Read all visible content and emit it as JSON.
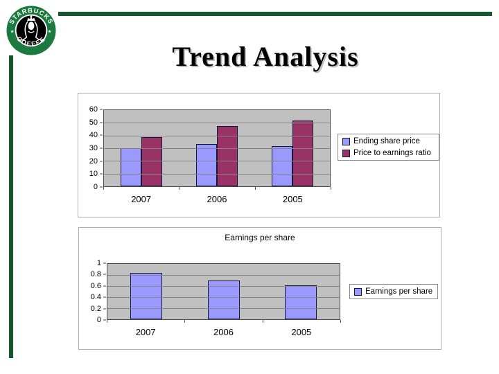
{
  "slide": {
    "title": "Trend Analysis",
    "accent_line_color": "#14582f",
    "logo": {
      "top_text": "STARBUCKS",
      "bottom_text": "COFFEE",
      "star_glyph": "★",
      "ring_color": "#1b7a3e",
      "center_color": "#000000",
      "text_color": "#ffffff"
    }
  },
  "chart_data": [
    {
      "type": "bar",
      "title": "",
      "categories": [
        "2007",
        "2006",
        "2005"
      ],
      "series": [
        {
          "name": "Ending share price",
          "color": "#9999ff",
          "values": [
            30,
            33.5,
            31.5
          ]
        },
        {
          "name": "Price to earnings ratio",
          "color": "#993366",
          "values": [
            38.5,
            47.5,
            52
          ]
        }
      ],
      "y_ticks": [
        "60",
        "50",
        "40",
        "30",
        "20",
        "10",
        "0"
      ],
      "ylim": [
        0,
        60
      ],
      "xlabel": "",
      "ylabel": "",
      "grid": true,
      "plot_bg": "#c0c0c0",
      "legend_position": "right"
    },
    {
      "type": "bar",
      "title": "Earnings per share",
      "categories": [
        "2007",
        "2006",
        "2005"
      ],
      "series": [
        {
          "name": "Earnings per share",
          "color": "#9999ff",
          "values": [
            0.84,
            0.7,
            0.61
          ]
        }
      ],
      "y_ticks": [
        "1",
        "0.8",
        "0.6",
        "0.4",
        "0.2",
        "0"
      ],
      "ylim": [
        0,
        1
      ],
      "xlabel": "",
      "ylabel": "",
      "grid": true,
      "plot_bg": "#c0c0c0",
      "legend_position": "right"
    }
  ]
}
